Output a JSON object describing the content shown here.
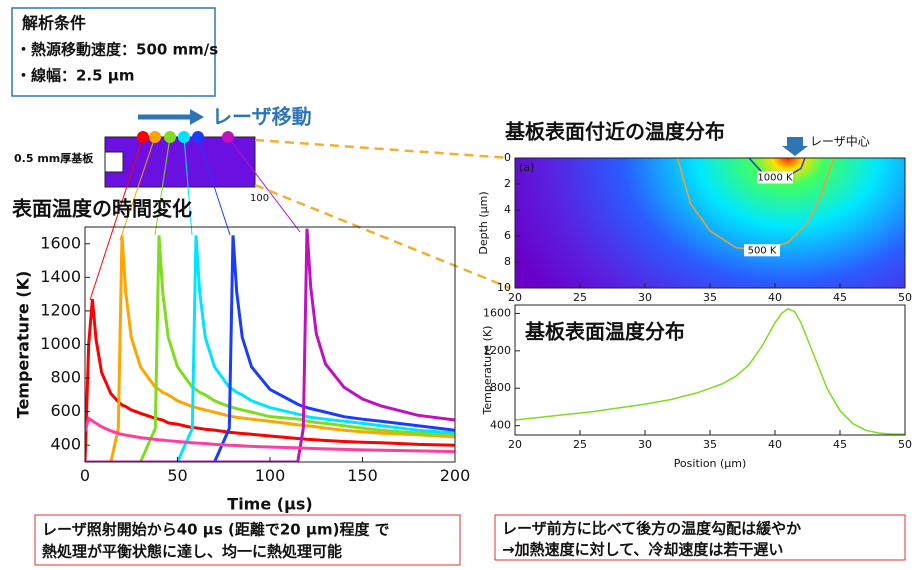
{
  "conditions": {
    "title": "解析条件",
    "items": [
      "・熱源移動速度：500 mm/s",
      "・線幅：2.5 µm"
    ]
  },
  "laser_move": "レーザ移動",
  "substrate_label": "0.5 mm厚基板",
  "schematic_tick": "100",
  "chart_data": [
    {
      "type": "line",
      "title": "表面温度の時間変化",
      "xlabel": "Time (µs)",
      "ylabel": "Temperature (K)",
      "xlim": [
        0,
        200
      ],
      "ylim": [
        300,
        1700
      ],
      "xticks": [
        0,
        50,
        100,
        150,
        200
      ],
      "yticks": [
        400,
        600,
        800,
        1000,
        1200,
        1400,
        1600
      ],
      "x": [
        0,
        2,
        4,
        6,
        9,
        14,
        18,
        20,
        22,
        25,
        30,
        38,
        40,
        42,
        45,
        50,
        58,
        60,
        62,
        65,
        70,
        78,
        80,
        82,
        85,
        90,
        100,
        115,
        118,
        120,
        122,
        125,
        130,
        140,
        150,
        160,
        180,
        200
      ],
      "series": [
        {
          "color": "#ff0000",
          "values": [
            300,
            1000,
            1270,
            1028,
            833,
            707,
            659,
            640,
            630,
            610,
            590,
            560,
            555,
            550,
            533,
            525,
            505,
            503,
            500,
            495,
            490,
            477,
            475,
            473,
            470,
            465,
            455,
            440,
            438,
            435,
            434,
            432,
            428,
            422,
            418,
            415,
            405,
            400
          ]
        },
        {
          "color": "#ffa500",
          "values": [
            300,
            300,
            300,
            300,
            300,
            300,
            500,
            1650,
            1313,
            1043,
            867,
            745,
            732,
            715,
            700,
            665,
            630,
            624,
            618,
            610,
            597,
            574,
            570,
            566,
            562,
            555,
            543,
            522,
            518,
            516,
            514,
            510,
            502,
            489,
            480,
            472,
            462,
            450
          ]
        },
        {
          "color": "#7fdc1e",
          "values": [
            300,
            300,
            300,
            300,
            300,
            300,
            300,
            300,
            300,
            300,
            300,
            500,
            1650,
            1313,
            1043,
            867,
            745,
            732,
            715,
            700,
            665,
            630,
            624,
            618,
            610,
            597,
            570,
            556,
            552,
            543,
            540,
            535,
            530,
            516,
            502,
            489,
            472,
            462
          ]
        },
        {
          "color": "#00e5ff",
          "values": [
            300,
            300,
            300,
            300,
            300,
            300,
            300,
            300,
            300,
            300,
            300,
            300,
            300,
            300,
            300,
            300,
            500,
            1650,
            1313,
            1043,
            867,
            745,
            732,
            715,
            700,
            665,
            624,
            585,
            578,
            570,
            566,
            562,
            555,
            543,
            530,
            516,
            489,
            472
          ]
        },
        {
          "color": "#1a3cff",
          "values": [
            300,
            300,
            300,
            300,
            300,
            300,
            300,
            300,
            300,
            300,
            300,
            300,
            300,
            300,
            300,
            300,
            300,
            300,
            300,
            300,
            300,
            500,
            1650,
            1313,
            1043,
            867,
            732,
            644,
            630,
            624,
            618,
            610,
            597,
            570,
            555,
            543,
            516,
            489
          ]
        },
        {
          "color": "#c010c0",
          "values": [
            300,
            300,
            300,
            300,
            300,
            300,
            300,
            300,
            300,
            300,
            300,
            300,
            300,
            300,
            300,
            300,
            300,
            300,
            300,
            300,
            300,
            300,
            300,
            300,
            300,
            300,
            300,
            300,
            500,
            1690,
            1343,
            1065,
            884,
            745,
            675,
            634,
            578,
            550
          ]
        },
        {
          "color": "#ff3fa0",
          "values": [
            480,
            560,
            545,
            530,
            510,
            485,
            470,
            465,
            460,
            455,
            445,
            435,
            432,
            430,
            427,
            422,
            415,
            413,
            412,
            410,
            405,
            400,
            399,
            398,
            396,
            393,
            389,
            384,
            383,
            382,
            381,
            380,
            378,
            375,
            372,
            370,
            366,
            362
          ]
        }
      ]
    },
    {
      "type": "contour",
      "title": "基板表面付近の温度分布",
      "ylabel": "Depth (µm)",
      "panel_label": "(a)",
      "annotation": "レーザ中心",
      "xlim": [
        20,
        50
      ],
      "ylim": [
        10,
        0
      ],
      "xticks": [
        20,
        25,
        30,
        35,
        40,
        45,
        50
      ],
      "yticks": [
        0,
        2,
        4,
        6,
        8,
        10
      ],
      "contours": [
        {
          "label": "1000 K",
          "color": "#2040c0",
          "x": [
            38,
            39,
            40,
            41,
            42,
            42.3
          ],
          "depth": [
            0,
            1.1,
            1.5,
            1.4,
            0.8,
            0
          ]
        },
        {
          "label": "500 K",
          "color": "#f0a030",
          "x": [
            32.5,
            33.5,
            35,
            37,
            39,
            41,
            42.5,
            43.5,
            44.5
          ],
          "depth": [
            0,
            3.5,
            5.6,
            6.9,
            7.1,
            6.5,
            5,
            3,
            0
          ]
        }
      ]
    },
    {
      "type": "line",
      "title": "基板表面温度分布",
      "xlabel": "Position (µm)",
      "ylabel": "Temperature (K)",
      "xlim": [
        20,
        50
      ],
      "ylim": [
        300,
        1690
      ],
      "xticks": [
        20,
        25,
        30,
        35,
        40,
        45,
        50
      ],
      "yticks": [
        400,
        800,
        1200,
        1600
      ],
      "x": [
        20,
        22,
        24,
        26,
        28,
        30,
        32,
        34,
        36,
        37,
        38,
        39,
        40,
        40.5,
        41,
        41.5,
        42,
        43,
        44,
        45,
        46,
        47,
        48,
        49,
        50
      ],
      "series": [
        {
          "color": "#7fdc1e",
          "values": [
            460,
            490,
            520,
            550,
            590,
            630,
            680,
            750,
            850,
            930,
            1050,
            1250,
            1500,
            1600,
            1650,
            1620,
            1500,
            1150,
            800,
            560,
            420,
            350,
            320,
            310,
            310
          ]
        }
      ]
    }
  ],
  "notes": [
    [
      "レーザ照射開始から40 µs (距離で20 µm)程度 で",
      "熱処理が平衡状態に達し、均一に熱処理可能"
    ],
    [
      "レーザ前方に比べて後方の温度勾配は緩やか",
      "→加熱速度に対して、冷却速度は若干遅い"
    ]
  ]
}
